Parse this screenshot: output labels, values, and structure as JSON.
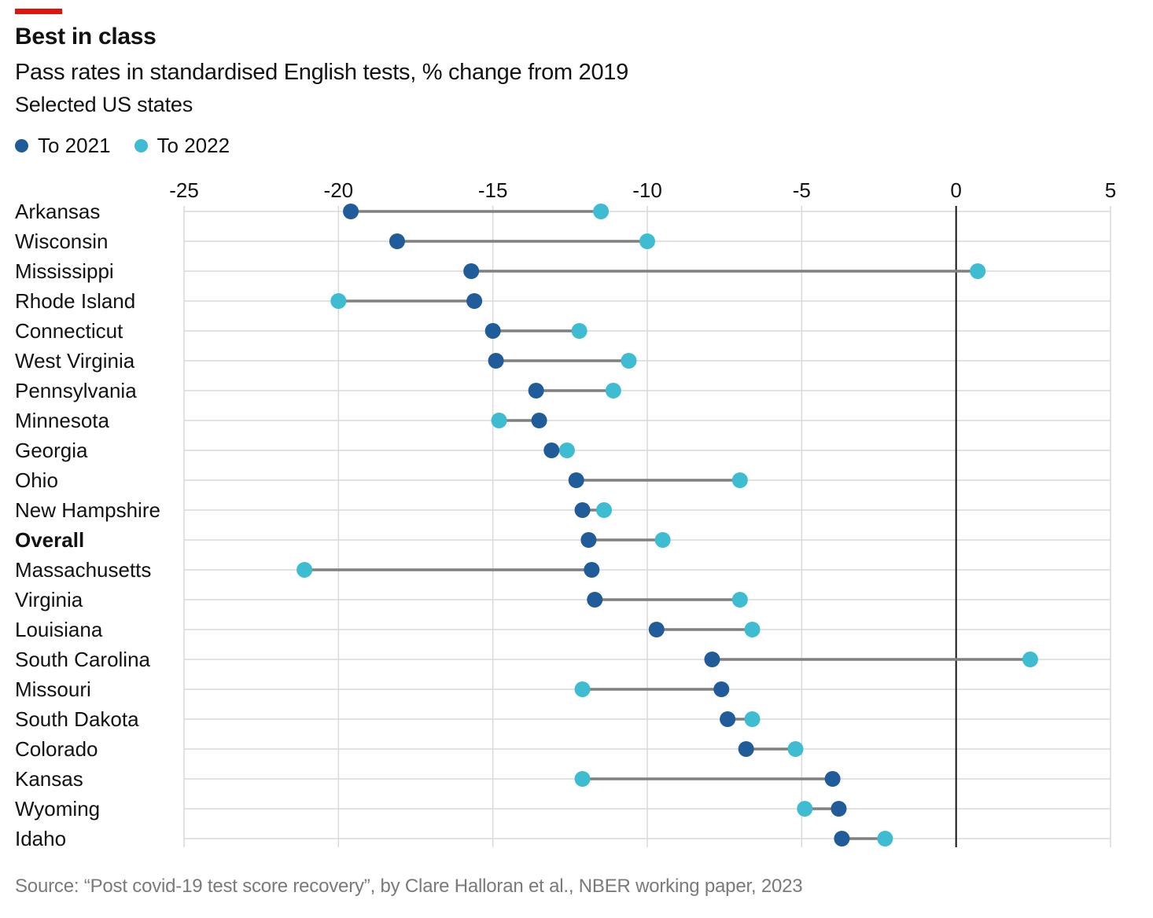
{
  "header": {
    "accent_color": "#e3120b",
    "title": "Best in class",
    "subtitle": "Pass rates in standardised English tests, % change from 2019",
    "note": "Selected US states"
  },
  "source": "Source: “Post covid-19 test score recovery”, by Clare Halloran et al., NBER working paper, 2023",
  "chart_data": {
    "type": "dumbbell",
    "title": "Best in class",
    "subtitle": "Pass rates in standardised English tests, % change from 2019",
    "xlabel": "",
    "ylabel": "",
    "xlim": [
      -25,
      5
    ],
    "xticks": [
      "-25",
      "-20",
      "-15",
      "-10",
      "-5",
      "0",
      "5"
    ],
    "xtick_values": [
      -25,
      -20,
      -15,
      -10,
      -5,
      0,
      5
    ],
    "grid": true,
    "legend_position": "top-left",
    "reference_line": 0,
    "connector_color": "#808080",
    "emphasis_category": "Overall",
    "series": [
      {
        "name": "To 2021",
        "color": "#1f5c99",
        "values": [
          -19.6,
          -18.1,
          -15.7,
          -15.6,
          -15.0,
          -14.9,
          -13.6,
          -13.5,
          -13.1,
          -12.3,
          -12.1,
          -11.9,
          -11.8,
          -11.7,
          -9.7,
          -7.9,
          -7.6,
          -7.4,
          -6.8,
          -4.0,
          -3.8,
          -3.7
        ]
      },
      {
        "name": "To 2022",
        "color": "#3ebcd2",
        "values": [
          -11.5,
          -10.0,
          0.7,
          -20.0,
          -12.2,
          -10.6,
          -11.1,
          -14.8,
          -12.6,
          -7.0,
          -11.4,
          -9.5,
          -21.1,
          -7.0,
          -6.6,
          2.4,
          -12.1,
          -6.6,
          -5.2,
          -12.1,
          -4.9,
          -2.3
        ]
      }
    ],
    "categories": [
      "Arkansas",
      "Wisconsin",
      "Mississippi",
      "Rhode Island",
      "Connecticut",
      "West Virginia",
      "Pennsylvania",
      "Minnesota",
      "Georgia",
      "Ohio",
      "New Hampshire",
      "Overall",
      "Massachusetts",
      "Virginia",
      "Louisiana",
      "South Carolina",
      "Missouri",
      "South Dakota",
      "Colorado",
      "Kansas",
      "Wyoming",
      "Idaho"
    ]
  }
}
